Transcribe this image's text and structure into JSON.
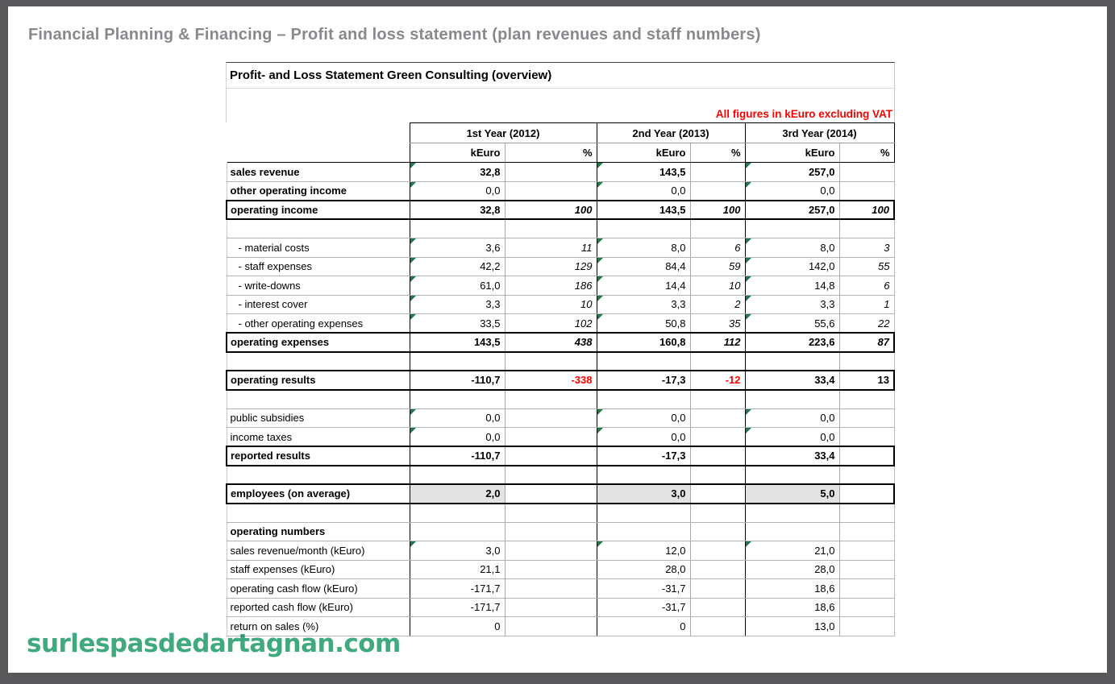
{
  "page": {
    "title": "Financial Planning & Financing – Profit and loss statement (plan revenues and staff numbers)",
    "watermark": "surlespasdedartagnan.com",
    "frame_color": "#58585a",
    "title_color": "#87898c",
    "watermark_color": "#35a578"
  },
  "sheet": {
    "title": "Profit- and Loss Statement Green Consulting (overview)",
    "note": "All figures in kEuro excluding VAT",
    "note_color": "#ff0000",
    "triangle_color": "#1b7a45",
    "year_headers": [
      "1st Year (2012)",
      "2nd Year (2013)",
      "3rd Year (2014)"
    ],
    "sub_headers": [
      "kEuro",
      "%"
    ],
    "rows": [
      {
        "label": "sales revenue",
        "label_bold": true,
        "bold_values": true,
        "tri": true,
        "cells": [
          "32,8",
          "",
          "143,5",
          "",
          "257,0",
          ""
        ]
      },
      {
        "label": "other operating income",
        "label_bold": true,
        "tri": true,
        "cells": [
          "0,0",
          "",
          "0,0",
          "",
          "0,0",
          ""
        ]
      },
      {
        "label": "operating income",
        "label_bold": true,
        "boxed": true,
        "bold_values": true,
        "cells": [
          "32,8",
          "100",
          "143,5",
          "100",
          "257,0",
          "100"
        ]
      },
      {
        "blank": true
      },
      {
        "label": "- material costs",
        "indent": true,
        "tri": true,
        "cells": [
          "3,6",
          "11",
          "8,0",
          "6",
          "8,0",
          "3"
        ]
      },
      {
        "label": "- staff expenses",
        "indent": true,
        "tri": true,
        "cells": [
          "42,2",
          "129",
          "84,4",
          "59",
          "142,0",
          "55"
        ]
      },
      {
        "label": "- write-downs",
        "indent": true,
        "tri": true,
        "cells": [
          "61,0",
          "186",
          "14,4",
          "10",
          "14,8",
          "6"
        ]
      },
      {
        "label": "- interest cover",
        "indent": true,
        "tri": true,
        "cells": [
          "3,3",
          "10",
          "3,3",
          "2",
          "3,3",
          "1"
        ]
      },
      {
        "label": "- other operating expenses",
        "indent": true,
        "tri": true,
        "cells": [
          "33,5",
          "102",
          "50,8",
          "35",
          "55,6",
          "22"
        ]
      },
      {
        "label": "operating expenses",
        "label_bold": true,
        "boxed": true,
        "bold_values": true,
        "cells": [
          "143,5",
          "438",
          "160,8",
          "112",
          "223,6",
          "87"
        ]
      },
      {
        "blank": true
      },
      {
        "label": "operating results",
        "label_bold": true,
        "boxed": true,
        "bold_values": true,
        "pct_upright": true,
        "red_cells": [
          1,
          3
        ],
        "cells": [
          "-110,7",
          "-338",
          "-17,3",
          "-12",
          "33,4",
          "13"
        ]
      },
      {
        "blank": true
      },
      {
        "label": "public subsidies",
        "tri": true,
        "cells": [
          "0,0",
          "",
          "0,0",
          "",
          "0,0",
          ""
        ]
      },
      {
        "label": "income taxes",
        "tri": true,
        "cells": [
          "0,0",
          "",
          "0,0",
          "",
          "0,0",
          ""
        ]
      },
      {
        "label": "reported results",
        "label_bold": true,
        "boxed": true,
        "bold_values": true,
        "cells": [
          "-110,7",
          "",
          "-17,3",
          "",
          "33,4",
          ""
        ]
      },
      {
        "blank": true
      },
      {
        "label": "employees (on average)",
        "label_bold": true,
        "boxed": true,
        "bold_values": true,
        "gray": true,
        "cells": [
          "2,0",
          "",
          "3,0",
          "",
          "5,0",
          ""
        ]
      },
      {
        "blank": true
      },
      {
        "label": "operating numbers",
        "label_bold": true,
        "cells": [
          "",
          "",
          "",
          "",
          "",
          ""
        ]
      },
      {
        "label": "sales revenue/month (kEuro)",
        "tri": true,
        "cells": [
          "3,0",
          "",
          "12,0",
          "",
          "21,0",
          ""
        ]
      },
      {
        "label": "staff expenses (kEuro)",
        "cells": [
          "21,1",
          "",
          "28,0",
          "",
          "28,0",
          ""
        ]
      },
      {
        "label": "operating cash flow (kEuro)",
        "cells": [
          "-171,7",
          "",
          "-31,7",
          "",
          "18,6",
          ""
        ]
      },
      {
        "label": "reported cash flow (kEuro)",
        "cells": [
          "-171,7",
          "",
          "-31,7",
          "",
          "18,6",
          ""
        ]
      },
      {
        "label": "return on sales (%)",
        "cells": [
          "0",
          "",
          "0",
          "",
          "13,0",
          ""
        ]
      }
    ]
  }
}
